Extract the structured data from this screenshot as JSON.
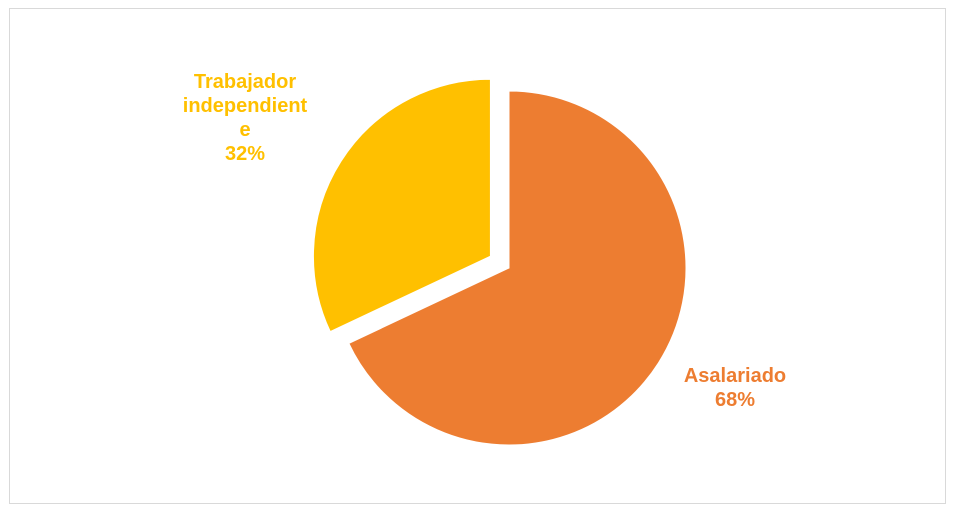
{
  "chart_data": {
    "type": "pie",
    "title": "",
    "slices": [
      {
        "name": "Asalariado",
        "value": 68,
        "label_lines": [
          "Asalariado",
          "68%"
        ],
        "color": "#ED7D31",
        "exploded": false
      },
      {
        "name": "Trabajador independiente",
        "value": 32,
        "label_lines": [
          "Trabajador",
          "independient",
          "e",
          "32%"
        ],
        "color": "#FFC000",
        "exploded": true
      }
    ],
    "legend": "none"
  }
}
